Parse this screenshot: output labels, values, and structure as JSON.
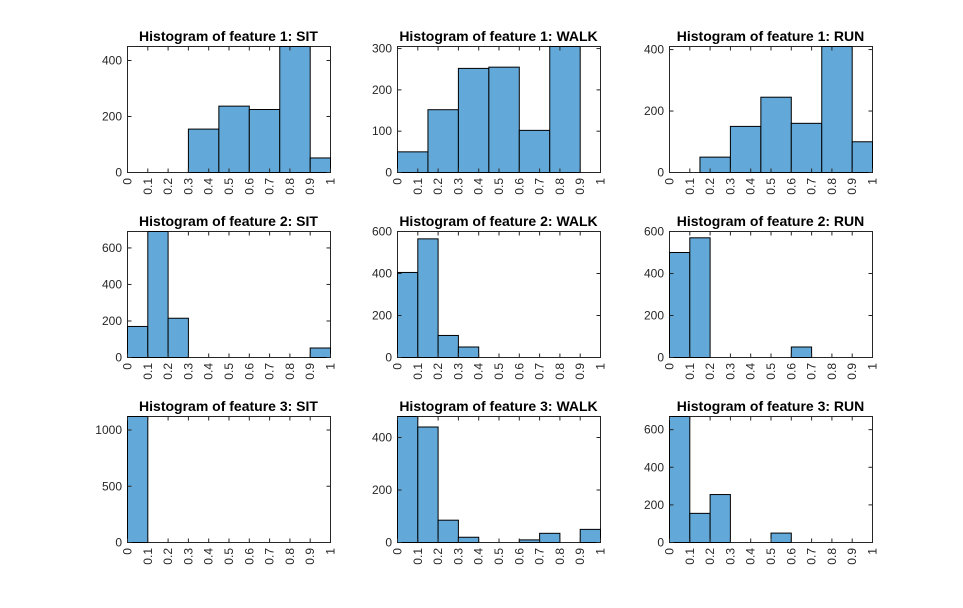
{
  "figure": {
    "background": "#ffffff",
    "bar_color": "#62a8d8",
    "bar_edge_color": "#000000",
    "axis_color": "#262626"
  },
  "chart_data": [
    {
      "type": "bar",
      "title": "Histogram of feature 1: SIT",
      "bin_edges": [
        0,
        0.1,
        0.2,
        0.3,
        0.4,
        0.5,
        0.6,
        0.7,
        0.8,
        0.9,
        1
      ],
      "x_tick_labels": [
        "0",
        "0.1",
        "0.2",
        "0.3",
        "0.4",
        "0.5",
        "0.6",
        "0.7",
        "0.8",
        "0.9",
        "1"
      ],
      "bins": [
        {
          "start": 0.3,
          "end": 0.45,
          "value": 155
        },
        {
          "start": 0.45,
          "end": 0.6,
          "value": 237
        },
        {
          "start": 0.6,
          "end": 0.75,
          "value": 225
        },
        {
          "start": 0.75,
          "end": 0.9,
          "value": 450
        },
        {
          "start": 0.9,
          "end": 1.0,
          "value": 52
        }
      ],
      "xlim": [
        0,
        1
      ],
      "ylim": [
        0,
        450
      ],
      "y_ticks": [
        0,
        200,
        400
      ],
      "y_tick_labels": [
        "0",
        "200",
        "400"
      ],
      "grid": false
    },
    {
      "type": "bar",
      "title": "Histogram of feature 1: WALK",
      "bin_edges": [
        0,
        0.1,
        0.2,
        0.3,
        0.4,
        0.5,
        0.6,
        0.7,
        0.8,
        0.9,
        1
      ],
      "x_tick_labels": [
        "0",
        "0.1",
        "0.2",
        "0.3",
        "0.4",
        "0.5",
        "0.6",
        "0.7",
        "0.8",
        "0.9",
        "1"
      ],
      "bins": [
        {
          "start": 0.0,
          "end": 0.15,
          "value": 50
        },
        {
          "start": 0.15,
          "end": 0.3,
          "value": 152
        },
        {
          "start": 0.3,
          "end": 0.45,
          "value": 252
        },
        {
          "start": 0.45,
          "end": 0.6,
          "value": 255
        },
        {
          "start": 0.6,
          "end": 0.75,
          "value": 102
        },
        {
          "start": 0.75,
          "end": 0.9,
          "value": 305
        }
      ],
      "xlim": [
        0,
        1
      ],
      "ylim": [
        0,
        305
      ],
      "y_ticks": [
        0,
        100,
        200,
        300
      ],
      "y_tick_labels": [
        "0",
        "100",
        "200",
        "300"
      ],
      "grid": false
    },
    {
      "type": "bar",
      "title": "Histogram of feature 1: RUN",
      "bin_edges": [
        0,
        0.1,
        0.2,
        0.3,
        0.4,
        0.5,
        0.6,
        0.7,
        0.8,
        0.9,
        1
      ],
      "x_tick_labels": [
        "0",
        "0.1",
        "0.2",
        "0.3",
        "0.4",
        "0.5",
        "0.6",
        "0.7",
        "0.8",
        "0.9",
        "1"
      ],
      "bins": [
        {
          "start": 0.15,
          "end": 0.3,
          "value": 50
        },
        {
          "start": 0.3,
          "end": 0.45,
          "value": 150
        },
        {
          "start": 0.45,
          "end": 0.6,
          "value": 245
        },
        {
          "start": 0.6,
          "end": 0.75,
          "value": 160
        },
        {
          "start": 0.75,
          "end": 0.9,
          "value": 410
        },
        {
          "start": 0.9,
          "end": 1.0,
          "value": 100
        }
      ],
      "xlim": [
        0,
        1
      ],
      "ylim": [
        0,
        410
      ],
      "y_ticks": [
        0,
        200,
        400
      ],
      "y_tick_labels": [
        "0",
        "200",
        "400"
      ],
      "grid": false
    },
    {
      "type": "bar",
      "title": "Histogram of feature 2: SIT",
      "bin_edges": [
        0,
        0.1,
        0.2,
        0.3,
        0.4,
        0.5,
        0.6,
        0.7,
        0.8,
        0.9,
        1
      ],
      "x_tick_labels": [
        "0",
        "0.1",
        "0.2",
        "0.3",
        "0.4",
        "0.5",
        "0.6",
        "0.7",
        "0.8",
        "0.9",
        "1"
      ],
      "bins": [
        {
          "start": 0.0,
          "end": 0.1,
          "value": 170
        },
        {
          "start": 0.1,
          "end": 0.2,
          "value": 690
        },
        {
          "start": 0.2,
          "end": 0.3,
          "value": 215
        },
        {
          "start": 0.9,
          "end": 1.0,
          "value": 52
        }
      ],
      "xlim": [
        0,
        1
      ],
      "ylim": [
        0,
        690
      ],
      "y_ticks": [
        0,
        200,
        400,
        600
      ],
      "y_tick_labels": [
        "0",
        "200",
        "400",
        "600"
      ],
      "grid": false
    },
    {
      "type": "bar",
      "title": "Histogram of feature 2: WALK",
      "bin_edges": [
        0,
        0.1,
        0.2,
        0.3,
        0.4,
        0.5,
        0.6,
        0.7,
        0.8,
        0.9,
        1
      ],
      "x_tick_labels": [
        "0",
        "0.1",
        "0.2",
        "0.3",
        "0.4",
        "0.5",
        "0.6",
        "0.7",
        "0.8",
        "0.9",
        "1"
      ],
      "bins": [
        {
          "start": 0.0,
          "end": 0.1,
          "value": 405
        },
        {
          "start": 0.1,
          "end": 0.2,
          "value": 565
        },
        {
          "start": 0.2,
          "end": 0.3,
          "value": 105
        },
        {
          "start": 0.3,
          "end": 0.4,
          "value": 50
        }
      ],
      "xlim": [
        0,
        1
      ],
      "ylim": [
        0,
        600
      ],
      "y_ticks": [
        0,
        200,
        400,
        600
      ],
      "y_tick_labels": [
        "0",
        "200",
        "400",
        "600"
      ],
      "grid": false
    },
    {
      "type": "bar",
      "title": "Histogram of feature 2: RUN",
      "bin_edges": [
        0,
        0.1,
        0.2,
        0.3,
        0.4,
        0.5,
        0.6,
        0.7,
        0.8,
        0.9,
        1
      ],
      "x_tick_labels": [
        "0",
        "0.1",
        "0.2",
        "0.3",
        "0.4",
        "0.5",
        "0.6",
        "0.7",
        "0.8",
        "0.9",
        "1"
      ],
      "bins": [
        {
          "start": 0.0,
          "end": 0.1,
          "value": 500
        },
        {
          "start": 0.1,
          "end": 0.2,
          "value": 570
        },
        {
          "start": 0.6,
          "end": 0.7,
          "value": 50
        }
      ],
      "xlim": [
        0,
        1
      ],
      "ylim": [
        0,
        600
      ],
      "y_ticks": [
        0,
        200,
        400,
        600
      ],
      "y_tick_labels": [
        "0",
        "200",
        "400",
        "600"
      ],
      "grid": false
    },
    {
      "type": "bar",
      "title": "Histogram of feature 3: SIT",
      "bin_edges": [
        0,
        0.1,
        0.2,
        0.3,
        0.4,
        0.5,
        0.6,
        0.7,
        0.8,
        0.9,
        1
      ],
      "x_tick_labels": [
        "0",
        "0.1",
        "0.2",
        "0.3",
        "0.4",
        "0.5",
        "0.6",
        "0.7",
        "0.8",
        "0.9",
        "1"
      ],
      "bins": [
        {
          "start": 0.0,
          "end": 0.1,
          "value": 1120
        }
      ],
      "xlim": [
        0,
        1
      ],
      "ylim": [
        0,
        1120
      ],
      "y_ticks": [
        0,
        500,
        1000
      ],
      "y_tick_labels": [
        "0",
        "500",
        "1000"
      ],
      "grid": false
    },
    {
      "type": "bar",
      "title": "Histogram of feature 3: WALK",
      "bin_edges": [
        0,
        0.1,
        0.2,
        0.3,
        0.4,
        0.5,
        0.6,
        0.7,
        0.8,
        0.9,
        1
      ],
      "x_tick_labels": [
        "0",
        "0.1",
        "0.2",
        "0.3",
        "0.4",
        "0.5",
        "0.6",
        "0.7",
        "0.8",
        "0.9",
        "1"
      ],
      "bins": [
        {
          "start": 0.0,
          "end": 0.1,
          "value": 480
        },
        {
          "start": 0.1,
          "end": 0.2,
          "value": 440
        },
        {
          "start": 0.2,
          "end": 0.3,
          "value": 85
        },
        {
          "start": 0.3,
          "end": 0.4,
          "value": 20
        },
        {
          "start": 0.6,
          "end": 0.7,
          "value": 10
        },
        {
          "start": 0.7,
          "end": 0.8,
          "value": 35
        },
        {
          "start": 0.9,
          "end": 1.0,
          "value": 50
        }
      ],
      "xlim": [
        0,
        1
      ],
      "ylim": [
        0,
        480
      ],
      "y_ticks": [
        0,
        200,
        400
      ],
      "y_tick_labels": [
        "0",
        "200",
        "400"
      ],
      "grid": false
    },
    {
      "type": "bar",
      "title": "Histogram of feature 3: RUN",
      "bin_edges": [
        0,
        0.1,
        0.2,
        0.3,
        0.4,
        0.5,
        0.6,
        0.7,
        0.8,
        0.9,
        1
      ],
      "x_tick_labels": [
        "0",
        "0.1",
        "0.2",
        "0.3",
        "0.4",
        "0.5",
        "0.6",
        "0.7",
        "0.8",
        "0.9",
        "1"
      ],
      "bins": [
        {
          "start": 0.0,
          "end": 0.1,
          "value": 670
        },
        {
          "start": 0.1,
          "end": 0.2,
          "value": 155
        },
        {
          "start": 0.2,
          "end": 0.3,
          "value": 255
        },
        {
          "start": 0.5,
          "end": 0.6,
          "value": 50
        }
      ],
      "xlim": [
        0,
        1
      ],
      "ylim": [
        0,
        670
      ],
      "y_ticks": [
        0,
        200,
        400,
        600
      ],
      "y_tick_labels": [
        "0",
        "200",
        "400",
        "600"
      ],
      "grid": false
    }
  ]
}
